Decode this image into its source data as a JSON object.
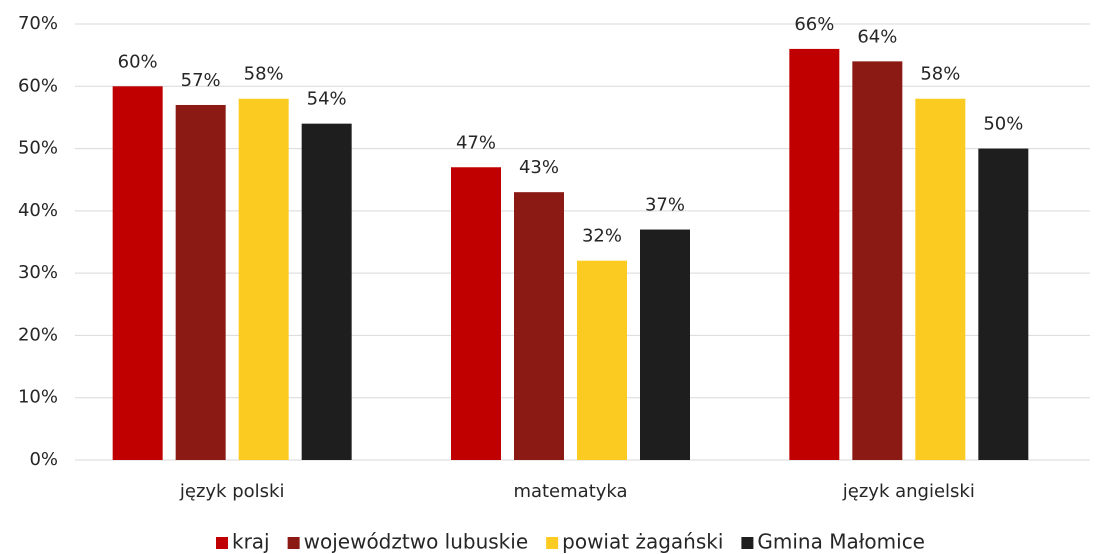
{
  "chart_data": {
    "type": "bar",
    "categories": [
      "język polski",
      "matematyka",
      "język angielski"
    ],
    "series": [
      {
        "name": "kraj",
        "color": "#c00000",
        "values": [
          60,
          47,
          66
        ],
        "value_labels": [
          "60%",
          "47%",
          "66%"
        ]
      },
      {
        "name": "województwo lubuskie",
        "color": "#8b1a14",
        "values": [
          57,
          43,
          64
        ],
        "value_labels": [
          "57%",
          "43%",
          "64%"
        ]
      },
      {
        "name": "powiat żagański",
        "color": "#fccb21",
        "values": [
          58,
          32,
          58
        ],
        "value_labels": [
          "58%",
          "32%",
          "58%"
        ]
      },
      {
        "name": "Gmina Małomice",
        "color": "#1e1e1e",
        "values": [
          54,
          37,
          50
        ],
        "value_labels": [
          "54%",
          "37%",
          "50%"
        ]
      }
    ],
    "ylim": [
      0,
      70
    ],
    "yticks": [
      {
        "value": 0,
        "label": "0%"
      },
      {
        "value": 10,
        "label": "10%"
      },
      {
        "value": 20,
        "label": "20%"
      },
      {
        "value": 30,
        "label": "30%"
      },
      {
        "value": 40,
        "label": "40%"
      },
      {
        "value": 50,
        "label": "50%"
      },
      {
        "value": 60,
        "label": "60%"
      },
      {
        "value": 70,
        "label": "70%"
      }
    ],
    "grid": true,
    "legend": "bottom"
  }
}
